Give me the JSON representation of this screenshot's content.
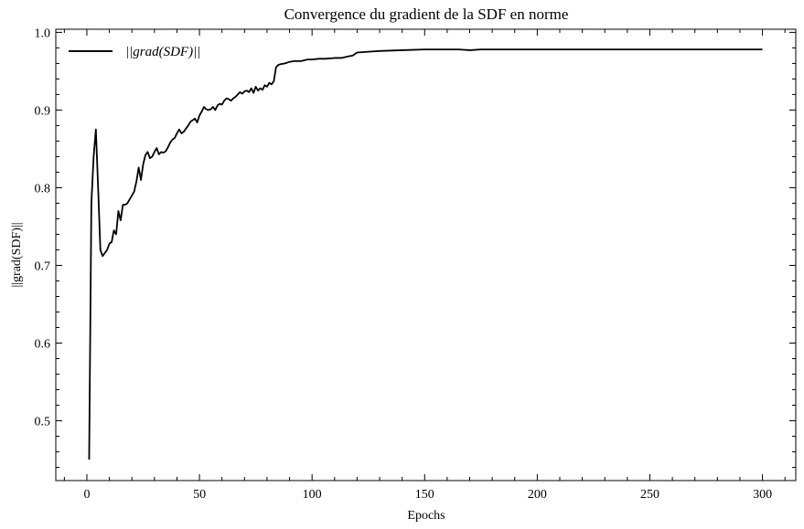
{
  "chart_data": {
    "type": "line",
    "title": "Convergence du gradient de la SDF en norme",
    "xlabel": "Epochs",
    "ylabel": "||grad(SDF)||",
    "xlim": [
      -13.8,
      314.8
    ],
    "ylim": [
      0.423,
      1.004
    ],
    "xticks": [
      0,
      50,
      100,
      150,
      200,
      250,
      300
    ],
    "yticks": [
      0.5,
      0.6,
      0.7,
      0.8,
      0.9,
      1.0
    ],
    "xtick_labels": [
      "0",
      "50",
      "100",
      "150",
      "200",
      "250",
      "300"
    ],
    "ytick_labels": [
      "0.5",
      "0.6",
      "0.7",
      "0.8",
      "0.9",
      "1.0"
    ],
    "grid": false,
    "legend_position": "top-left",
    "series": [
      {
        "name": "||grad(SDF)||",
        "color": "#000000",
        "x": [
          1,
          2,
          3,
          4,
          5,
          6,
          7,
          8,
          9,
          10,
          11,
          12,
          13,
          14,
          15,
          16,
          17,
          18,
          19,
          20,
          21,
          22,
          23,
          24,
          25,
          26,
          27,
          28,
          29,
          30,
          31,
          32,
          33,
          34,
          35,
          36,
          37,
          38,
          39,
          40,
          41,
          42,
          43,
          44,
          45,
          46,
          47,
          48,
          49,
          50,
          51,
          52,
          53,
          54,
          55,
          56,
          57,
          58,
          59,
          60,
          61,
          62,
          63,
          64,
          65,
          66,
          67,
          68,
          69,
          70,
          71,
          72,
          73,
          74,
          75,
          76,
          77,
          78,
          79,
          80,
          81,
          82,
          83,
          84,
          85,
          86,
          88,
          90,
          92,
          95,
          98,
          100,
          103,
          106,
          110,
          113,
          116,
          118,
          120,
          125,
          130,
          140,
          150,
          160,
          165,
          170,
          175,
          180,
          200,
          225,
          250,
          275,
          300
        ],
        "y": [
          0.45,
          0.78,
          0.84,
          0.875,
          0.8,
          0.72,
          0.712,
          0.716,
          0.72,
          0.728,
          0.73,
          0.745,
          0.74,
          0.77,
          0.758,
          0.778,
          0.778,
          0.78,
          0.785,
          0.79,
          0.795,
          0.808,
          0.826,
          0.81,
          0.83,
          0.842,
          0.846,
          0.838,
          0.84,
          0.846,
          0.851,
          0.843,
          0.846,
          0.845,
          0.847,
          0.852,
          0.858,
          0.862,
          0.864,
          0.87,
          0.875,
          0.87,
          0.872,
          0.876,
          0.88,
          0.885,
          0.887,
          0.889,
          0.884,
          0.893,
          0.898,
          0.904,
          0.901,
          0.9,
          0.901,
          0.904,
          0.9,
          0.906,
          0.908,
          0.907,
          0.912,
          0.915,
          0.914,
          0.912,
          0.915,
          0.917,
          0.92,
          0.923,
          0.921,
          0.924,
          0.925,
          0.923,
          0.928,
          0.922,
          0.93,
          0.925,
          0.928,
          0.926,
          0.932,
          0.93,
          0.935,
          0.933,
          0.937,
          0.955,
          0.958,
          0.959,
          0.96,
          0.962,
          0.963,
          0.963,
          0.965,
          0.965,
          0.966,
          0.966,
          0.967,
          0.967,
          0.969,
          0.97,
          0.974,
          0.975,
          0.976,
          0.977,
          0.978,
          0.978,
          0.978,
          0.977,
          0.978,
          0.978,
          0.978,
          0.978,
          0.978,
          0.978,
          0.978
        ]
      }
    ]
  }
}
